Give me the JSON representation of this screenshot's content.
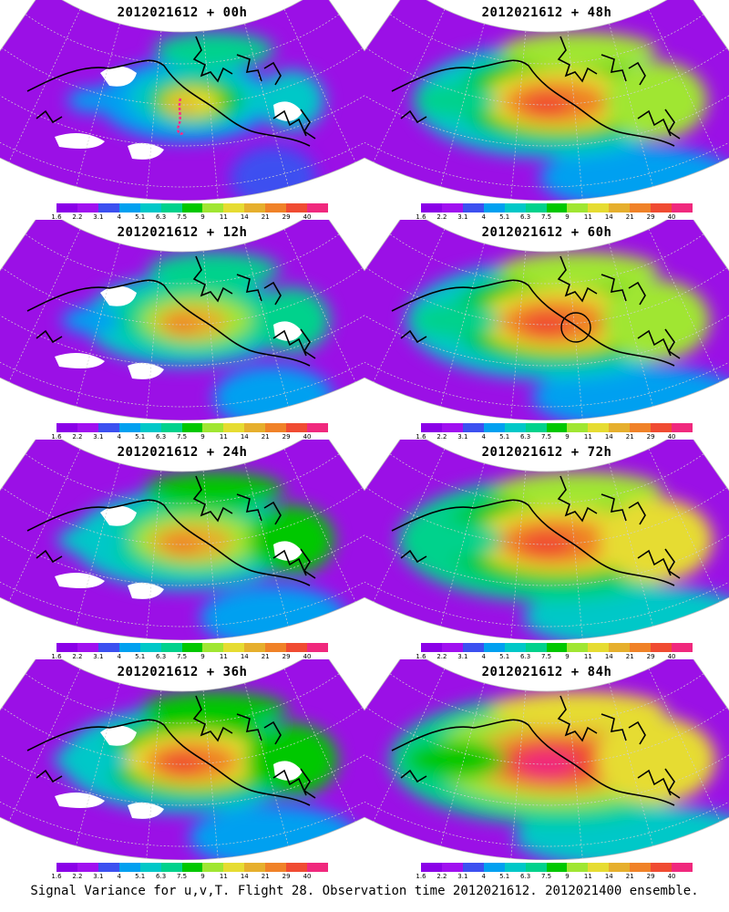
{
  "panels": [
    {
      "title": "2012021612 + 00h",
      "intensity": 0.15,
      "white_patches": true,
      "flight_track": true,
      "circle": false
    },
    {
      "title": "2012021612 + 48h",
      "intensity": 0.65,
      "white_patches": false,
      "flight_track": false,
      "circle": false
    },
    {
      "title": "2012021612 + 12h",
      "intensity": 0.3,
      "white_patches": true,
      "flight_track": false,
      "circle": false
    },
    {
      "title": "2012021612 + 60h",
      "intensity": 0.72,
      "white_patches": false,
      "flight_track": false,
      "circle": true
    },
    {
      "title": "2012021612 + 24h",
      "intensity": 0.42,
      "white_patches": true,
      "flight_track": false,
      "circle": false
    },
    {
      "title": "2012021612 + 72h",
      "intensity": 0.8,
      "white_patches": false,
      "flight_track": false,
      "circle": false
    },
    {
      "title": "2012021612 + 36h",
      "intensity": 0.52,
      "white_patches": true,
      "flight_track": false,
      "circle": false
    },
    {
      "title": "2012021612 + 84h",
      "intensity": 0.88,
      "white_patches": false,
      "flight_track": false,
      "circle": false
    }
  ],
  "colorbar": {
    "colors": [
      "#8b00e8",
      "#a010f0",
      "#3c50f0",
      "#00a0f0",
      "#00c8c8",
      "#00d28c",
      "#00c800",
      "#a0e632",
      "#e6dc32",
      "#e6af2d",
      "#f08228",
      "#f04b32",
      "#f0287d"
    ],
    "tick_labels": [
      "1.6",
      "2.2",
      "3.1",
      "4",
      "5.1",
      "6.3",
      "7.5",
      "9",
      "11",
      "14",
      "21",
      "29",
      "40"
    ]
  },
  "caption": "Signal Variance for u,v,T. Flight 28. Observation time 2012021612. 2012021400 ensemble."
}
